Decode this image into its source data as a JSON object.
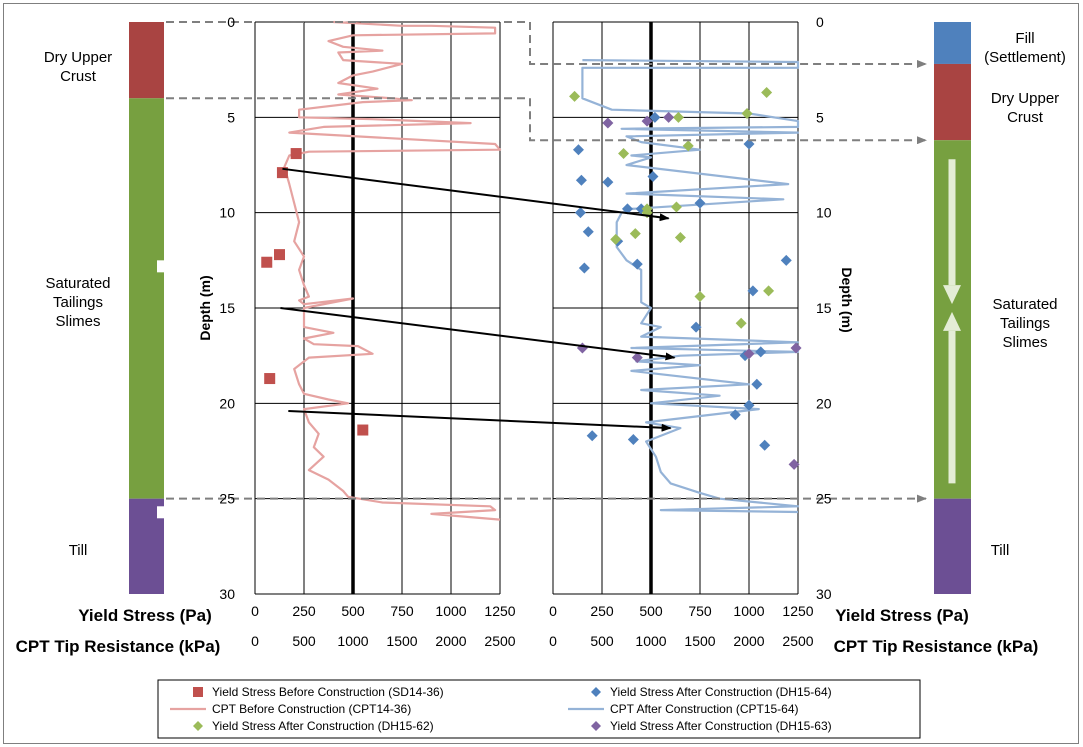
{
  "chart_data": {
    "type": "scatter",
    "ylabel": "Depth (m)",
    "xlabel_primary": "Yield Stress (Pa)",
    "xlabel_secondary": "CPT Tip Resistance (kPa)",
    "y_ticks": [
      "0",
      "5",
      "10",
      "15",
      "20",
      "25",
      "30"
    ],
    "x_ticks_primary": [
      "0",
      "250",
      "500",
      "750",
      "1000",
      "1250"
    ],
    "x_ticks_secondary": [
      "0",
      "500",
      "1000",
      "1500",
      "2000",
      "2500"
    ],
    "ylim": [
      0,
      30
    ],
    "xlim_primary": [
      0,
      1250
    ],
    "xlim_secondary": [
      0,
      2500
    ],
    "reference_line_kpa": 1000,
    "grid": true,
    "colors": {
      "ys_before": "#c0504d",
      "cpt_before": "#e6a3a1",
      "ys_after_dh1564": "#4f81bd",
      "cpt_after": "#95b3d7",
      "ys_after_dh1562": "#9bbb59",
      "ys_after_dh1563": "#8064a2",
      "fill": "#4f81bd",
      "crust": "#a94442",
      "slimes": "#77a040",
      "till": "#6c4f94"
    },
    "left_layers": [
      {
        "label": "Dry Upper Crust",
        "top": 0,
        "bottom": 4,
        "color_key": "crust"
      },
      {
        "label": "Saturated Tailings Slimes",
        "top": 4,
        "bottom": 25,
        "color_key": "slimes"
      },
      {
        "label": "Till",
        "top": 25,
        "bottom": 30,
        "color_key": "till"
      }
    ],
    "right_layers": [
      {
        "label": "Fill (Settlement)",
        "top": 0,
        "bottom": 2.2,
        "color_key": "fill"
      },
      {
        "label": "Dry Upper Crust",
        "top": 2.2,
        "bottom": 6.2,
        "color_key": "crust"
      },
      {
        "label": "Saturated Tailings Slimes",
        "top": 6.2,
        "bottom": 25,
        "color_key": "slimes"
      },
      {
        "label": "Till",
        "top": 25,
        "bottom": 30,
        "color_key": "till"
      }
    ],
    "series": [
      {
        "name": "Yield Stress Before Construction (SD14-36)",
        "panel": "before",
        "kind": "square",
        "color_key": "ys_before",
        "points": [
          [
            210,
            6.9
          ],
          [
            140,
            7.9
          ],
          [
            125,
            12.2
          ],
          [
            60,
            12.6
          ],
          [
            75,
            18.7
          ],
          [
            550,
            21.4
          ]
        ]
      },
      {
        "name": "CPT Before Construction (CPT14-36)",
        "panel": "before",
        "kind": "line",
        "color_key": "cpt_before",
        "points": [
          [
            800,
            0
          ],
          [
            1500,
            0.2
          ],
          [
            1800,
            0.2
          ],
          [
            2450,
            0.3
          ],
          [
            2450,
            0.6
          ],
          [
            1000,
            0.7
          ],
          [
            750,
            1.0
          ],
          [
            900,
            1.3
          ],
          [
            1300,
            1.5
          ],
          [
            850,
            1.6
          ],
          [
            900,
            2.0
          ],
          [
            1500,
            2.2
          ],
          [
            1200,
            2.6
          ],
          [
            1000,
            2.8
          ],
          [
            850,
            3.2
          ],
          [
            1250,
            3.5
          ],
          [
            850,
            3.8
          ],
          [
            1400,
            4.0
          ],
          [
            1600,
            4.1
          ],
          [
            1100,
            4.2
          ],
          [
            450,
            4.6
          ],
          [
            450,
            5.0
          ],
          [
            1200,
            5.1
          ],
          [
            2200,
            5.3
          ],
          [
            700,
            5.5
          ],
          [
            350,
            5.8
          ],
          [
            2450,
            6.4
          ],
          [
            2500,
            6.7
          ],
          [
            550,
            6.8
          ],
          [
            350,
            7.0
          ],
          [
            300,
            7.6
          ],
          [
            350,
            8.5
          ],
          [
            400,
            9.5
          ],
          [
            450,
            10.5
          ],
          [
            400,
            11.5
          ],
          [
            500,
            12.3
          ],
          [
            450,
            13.0
          ],
          [
            500,
            13.8
          ],
          [
            550,
            14.4
          ],
          [
            450,
            14.6
          ],
          [
            500,
            14.8
          ],
          [
            1000,
            14.5
          ],
          [
            500,
            15.0
          ],
          [
            500,
            16.0
          ],
          [
            800,
            16.3
          ],
          [
            500,
            16.6
          ],
          [
            600,
            16.9
          ],
          [
            1050,
            17.0
          ],
          [
            1200,
            17.4
          ],
          [
            550,
            17.6
          ],
          [
            400,
            18.2
          ],
          [
            450,
            19.0
          ],
          [
            500,
            19.5
          ],
          [
            750,
            19.8
          ],
          [
            950,
            20.0
          ],
          [
            500,
            20.3
          ],
          [
            550,
            21.0
          ],
          [
            650,
            21.6
          ],
          [
            600,
            22.3
          ],
          [
            700,
            22.8
          ],
          [
            550,
            23.5
          ],
          [
            750,
            24.0
          ],
          [
            900,
            24.6
          ],
          [
            950,
            24.9
          ],
          [
            1300,
            25.2
          ],
          [
            2400,
            25.4
          ],
          [
            2450,
            25.6
          ],
          [
            1800,
            25.8
          ],
          [
            2500,
            26.1
          ]
        ]
      },
      {
        "name": "Yield Stress After Construction (DH15-64)",
        "panel": "after",
        "kind": "diamond",
        "color_key": "ys_after_dh1564",
        "points": [
          [
            520,
            5.0
          ],
          [
            1000,
            6.4
          ],
          [
            130,
            6.7
          ],
          [
            145,
            8.3
          ],
          [
            280,
            8.4
          ],
          [
            510,
            8.1
          ],
          [
            750,
            9.5
          ],
          [
            380,
            9.8
          ],
          [
            140,
            10.0
          ],
          [
            180,
            11.0
          ],
          [
            330,
            11.5
          ],
          [
            450,
            9.8
          ],
          [
            1190,
            12.5
          ],
          [
            160,
            12.9
          ],
          [
            430,
            12.7
          ],
          [
            1020,
            14.1
          ],
          [
            730,
            16.0
          ],
          [
            1060,
            17.3
          ],
          [
            980,
            17.5
          ],
          [
            1040,
            19.0
          ],
          [
            1000,
            20.1
          ],
          [
            930,
            20.6
          ],
          [
            200,
            21.7
          ],
          [
            410,
            21.9
          ],
          [
            1080,
            22.2
          ]
        ]
      },
      {
        "name": "CPT After Construction (CPT15-64)",
        "panel": "after",
        "kind": "line",
        "color_key": "cpt_after",
        "points": [
          [
            300,
            2.0
          ],
          [
            2500,
            2.1
          ],
          [
            2500,
            2.4
          ],
          [
            300,
            2.4
          ],
          [
            300,
            4.0
          ],
          [
            600,
            4.6
          ],
          [
            2000,
            4.8
          ],
          [
            2500,
            5.2
          ],
          [
            2500,
            5.5
          ],
          [
            700,
            5.6
          ],
          [
            2500,
            5.8
          ],
          [
            750,
            6.0
          ],
          [
            900,
            6.3
          ],
          [
            1500,
            6.7
          ],
          [
            800,
            7.0
          ],
          [
            1000,
            7.1
          ],
          [
            750,
            7.5
          ],
          [
            2400,
            8.5
          ],
          [
            750,
            9.0
          ],
          [
            2350,
            9.3
          ],
          [
            800,
            9.8
          ],
          [
            700,
            10.0
          ],
          [
            650,
            10.5
          ],
          [
            650,
            11.8
          ],
          [
            750,
            12.5
          ],
          [
            900,
            13.0
          ],
          [
            900,
            14.7
          ],
          [
            1000,
            15.0
          ],
          [
            900,
            15.8
          ],
          [
            1100,
            16.0
          ],
          [
            900,
            16.5
          ],
          [
            2500,
            16.8
          ],
          [
            800,
            17.1
          ],
          [
            2500,
            17.3
          ],
          [
            1300,
            17.5
          ],
          [
            850,
            17.8
          ],
          [
            1500,
            18.0
          ],
          [
            800,
            18.3
          ],
          [
            2000,
            19.0
          ],
          [
            900,
            19.3
          ],
          [
            1700,
            19.6
          ],
          [
            1000,
            20.0
          ],
          [
            2100,
            20.3
          ],
          [
            950,
            21.0
          ],
          [
            1300,
            21.3
          ],
          [
            950,
            22.0
          ],
          [
            1050,
            22.8
          ],
          [
            1100,
            23.6
          ],
          [
            1200,
            24.2
          ],
          [
            1500,
            24.7
          ],
          [
            1700,
            25.0
          ],
          [
            2100,
            25.2
          ],
          [
            2500,
            25.4
          ],
          [
            1100,
            25.6
          ],
          [
            2500,
            25.7
          ]
        ]
      },
      {
        "name": "Yield Stress After Construction (DH15-62)",
        "panel": "after",
        "kind": "diamond",
        "color_key": "ys_after_dh1562",
        "points": [
          [
            110,
            3.9
          ],
          [
            1090,
            3.7
          ],
          [
            640,
            5.0
          ],
          [
            990,
            4.8
          ],
          [
            360,
            6.9
          ],
          [
            690,
            6.5
          ],
          [
            480,
            9.8
          ],
          [
            630,
            9.7
          ],
          [
            480,
            10.0
          ],
          [
            420,
            11.1
          ],
          [
            320,
            11.4
          ],
          [
            650,
            11.3
          ],
          [
            1100,
            14.1
          ],
          [
            750,
            14.4
          ],
          [
            960,
            15.8
          ]
        ]
      },
      {
        "name": "Yield Stress After Construction (DH15-63)",
        "panel": "after",
        "kind": "diamond",
        "color_key": "ys_after_dh1563",
        "points": [
          [
            280,
            5.3
          ],
          [
            480,
            5.2
          ],
          [
            590,
            5.0
          ],
          [
            150,
            17.1
          ],
          [
            430,
            17.6
          ],
          [
            1000,
            17.4
          ],
          [
            1240,
            17.1
          ],
          [
            1230,
            23.2
          ]
        ]
      }
    ],
    "arrows": [
      {
        "from": [
          140,
          7.7
        ],
        "to": [
          590,
          10.3
        ]
      },
      {
        "from": [
          130,
          15.0
        ],
        "to": [
          620,
          17.6
        ]
      },
      {
        "from": [
          170,
          20.4
        ],
        "to": [
          600,
          21.3
        ]
      }
    ],
    "dashed_connectors": [
      {
        "from": [
          0,
          0
        ],
        "to": [
          2.2,
          "right_fill"
        ]
      },
      {
        "from": [
          4,
          4
        ],
        "to": [
          6.2,
          "right_crust"
        ]
      },
      {
        "from": [
          25,
          25
        ],
        "to": [
          25,
          "right_till"
        ]
      }
    ],
    "legend_position": "bottom"
  }
}
